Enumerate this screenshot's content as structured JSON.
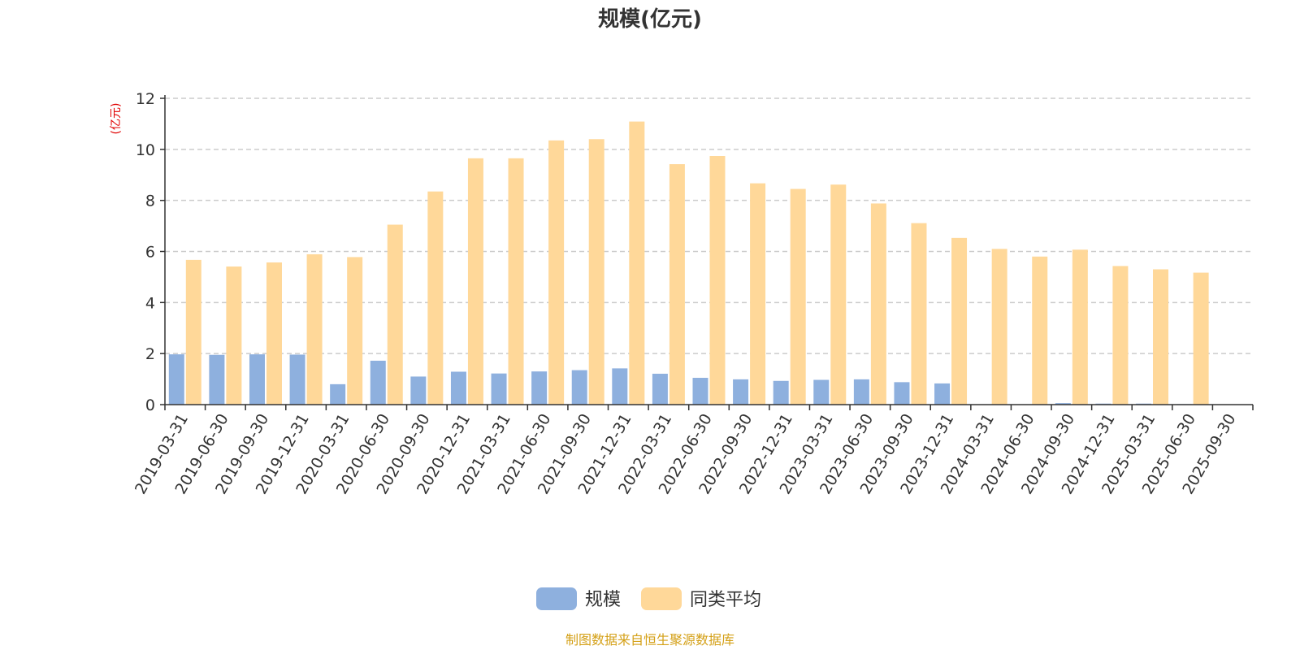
{
  "chart_data": {
    "type": "bar",
    "title": "规模(亿元)",
    "ylabel": "(亿元)",
    "ylim": [
      0,
      12
    ],
    "yticks": [
      "0",
      "2",
      "4",
      "6",
      "8",
      "10",
      "12"
    ],
    "grid": true,
    "legend_position": "bottom-center",
    "categories": [
      "2019-03-31",
      "2019-06-30",
      "2019-09-30",
      "2019-12-31",
      "2020-03-31",
      "2020-06-30",
      "2020-09-30",
      "2020-12-31",
      "2021-03-31",
      "2021-06-30",
      "2021-09-30",
      "2021-12-31",
      "2022-03-31",
      "2022-06-30",
      "2022-09-30",
      "2022-12-31",
      "2023-03-31",
      "2023-06-30",
      "2023-09-30",
      "2023-12-31",
      "2024-03-31",
      "2024-06-30",
      "2024-09-30",
      "2024-12-31",
      "2025-03-31",
      "2025-06-30",
      "2025-09-30"
    ],
    "series": [
      {
        "name": "规模",
        "color": "#8eb0de",
        "values": [
          1.97,
          1.95,
          1.97,
          1.96,
          0.8,
          1.72,
          1.1,
          1.29,
          1.22,
          1.3,
          1.35,
          1.42,
          1.21,
          1.05,
          0.99,
          0.93,
          0.97,
          0.99,
          0.88,
          0.83,
          0.01,
          0.01,
          0.06,
          0.04,
          0.04,
          0.02,
          0.01
        ]
      },
      {
        "name": "同类平均",
        "color": "#ffd899",
        "values": [
          5.67,
          5.41,
          5.57,
          5.89,
          5.78,
          7.05,
          8.35,
          9.65,
          9.65,
          10.35,
          10.4,
          11.09,
          9.42,
          9.74,
          8.67,
          8.45,
          8.62,
          7.88,
          7.11,
          6.53,
          6.1,
          5.8,
          6.07,
          5.43,
          5.3,
          5.17,
          null
        ]
      }
    ]
  },
  "footer": {
    "source": "制图数据来自恒生聚源数据库"
  }
}
